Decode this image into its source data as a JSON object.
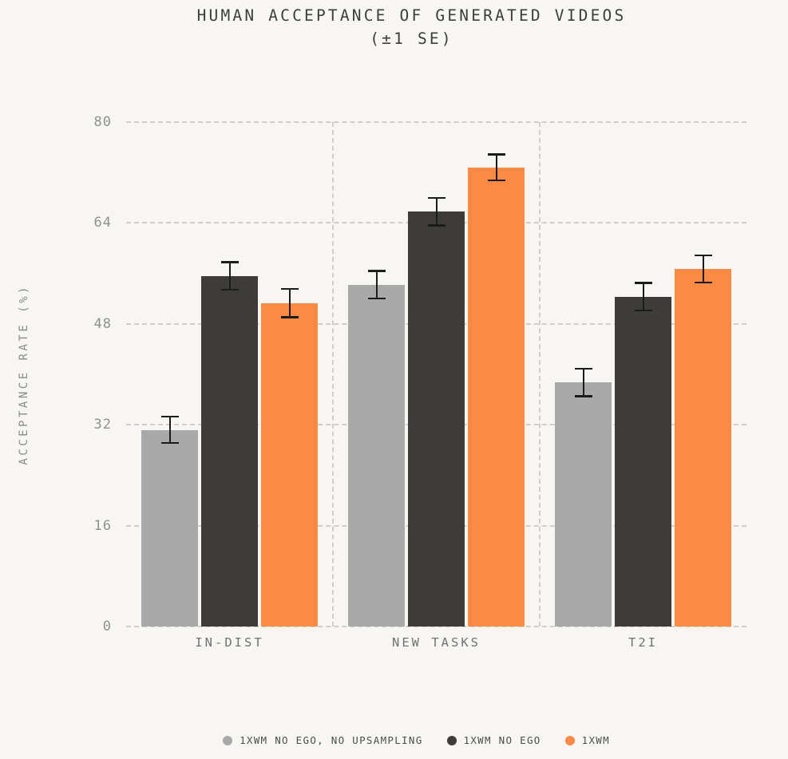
{
  "chart_data": {
    "type": "bar",
    "title": "HUMAN ACCEPTANCE OF GENERATED VIDEOS",
    "subtitle": "(±1 SE)",
    "ylabel": "ACCEPTANCE RATE (%)",
    "xlabel": "",
    "categories": [
      "IN-DIST",
      "NEW TASKS",
      "T2I"
    ],
    "yticks": [
      0,
      16,
      32,
      48,
      64,
      80
    ],
    "ylim": [
      0,
      80
    ],
    "grid": true,
    "error_bar_note": "±1 SE",
    "legend_position": "bottom",
    "series": [
      {
        "name": "1XWM NO EGO, NO UPSAMPLING",
        "color": "#a9a9a9",
        "values": [
          31.2,
          54.2,
          38.7
        ],
        "errors": [
          2.1,
          2.2,
          2.2
        ]
      },
      {
        "name": "1XWM NO EGO",
        "color": "#3d3c39",
        "values": [
          55.6,
          65.8,
          52.3
        ],
        "errors": [
          2.2,
          2.2,
          2.2
        ]
      },
      {
        "name": "1XWM",
        "color": "#fb8a44",
        "values": [
          51.3,
          72.8,
          56.7
        ],
        "errors": [
          2.3,
          2.1,
          2.2
        ]
      }
    ]
  },
  "style": {
    "background": "#f7f6f3",
    "grid_color": "#cfcecb",
    "error_bar_color": "#1c1c1c",
    "title_color": "#3d3d3d",
    "ytick_color": "#909090",
    "xtick_color": "#717174",
    "ylabel_color": "#8a8a8a",
    "legend_text_color": "#4d4d4d"
  }
}
